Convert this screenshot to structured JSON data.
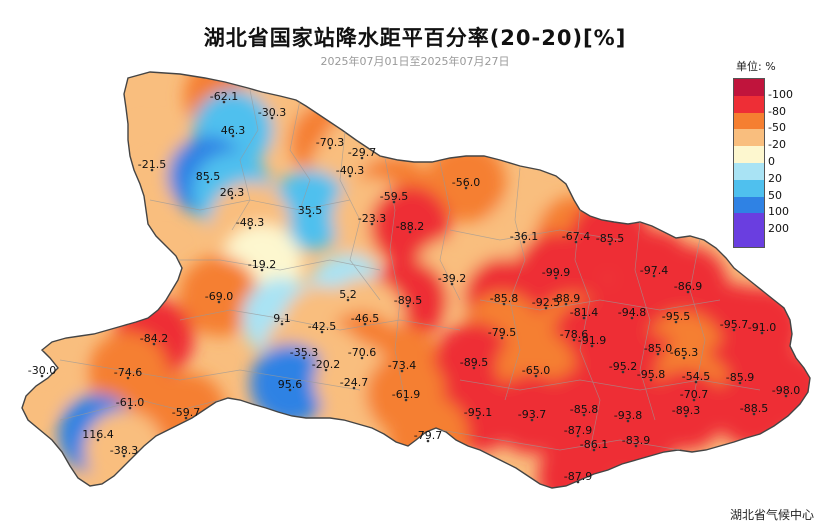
{
  "header": {
    "title": "湖北省国家站降水距平百分率(20-20)[%]",
    "subtitle": "2025年07月01日至2025年07月27日"
  },
  "legend": {
    "unit_label": "单位: %",
    "items": [
      {
        "label": "-100",
        "color": "#c0143c"
      },
      {
        "label": "-80",
        "color": "#ee2e36"
      },
      {
        "label": "-50",
        "color": "#f57f31"
      },
      {
        "label": "-20",
        "color": "#f9be7e"
      },
      {
        "label": "0",
        "color": "#fdf7cf"
      },
      {
        "label": "20",
        "color": "#a9e3f4"
      },
      {
        "label": "50",
        "color": "#4fc0ee"
      },
      {
        "label": "100",
        "color": "#2f82e4"
      },
      {
        "label": "200",
        "color": "#6a3ee0"
      },
      {
        "label": "",
        "color": "#6a3ee0"
      }
    ]
  },
  "footer": "湖北省气候中心",
  "stations": [
    {
      "v": "-62.1"
    },
    {
      "v": "-30.3"
    },
    {
      "v": "46.3"
    },
    {
      "v": "-70.3"
    },
    {
      "v": "-29.7"
    },
    {
      "v": "-21.5"
    },
    {
      "v": "85.5"
    },
    {
      "v": "-40.3"
    },
    {
      "v": "-56.0"
    },
    {
      "v": "26.3"
    },
    {
      "v": "-59.5"
    },
    {
      "v": "35.5"
    },
    {
      "v": "-23.3"
    },
    {
      "v": "-48.3"
    },
    {
      "v": "-88.2"
    },
    {
      "v": "-36.1"
    },
    {
      "v": "-67.4"
    },
    {
      "v": "-85.5"
    },
    {
      "v": "-19.2"
    },
    {
      "v": "-39.2"
    },
    {
      "v": "-99.9"
    },
    {
      "v": "-97.4"
    },
    {
      "v": "-69.0"
    },
    {
      "v": "5.2"
    },
    {
      "v": "-85.8"
    },
    {
      "v": "-92.5"
    },
    {
      "v": "-88.9"
    },
    {
      "v": "-86.9"
    },
    {
      "v": "-89.5"
    },
    {
      "v": "-81.4"
    },
    {
      "v": "9.1"
    },
    {
      "v": "-46.5"
    },
    {
      "v": "-94.8"
    },
    {
      "v": "-95.5"
    },
    {
      "v": "-42.5"
    },
    {
      "v": "-84.2"
    },
    {
      "v": "-79.5"
    },
    {
      "v": "-78.6"
    },
    {
      "v": "-91.9"
    },
    {
      "v": "-95.7"
    },
    {
      "v": "-91.0"
    },
    {
      "v": "-35.3"
    },
    {
      "v": "-70.6"
    },
    {
      "v": "-85.0"
    },
    {
      "v": "-65.3"
    },
    {
      "v": "-30.0"
    },
    {
      "v": "-74.6"
    },
    {
      "v": "-20.2"
    },
    {
      "v": "-73.4"
    },
    {
      "v": "-89.5"
    },
    {
      "v": "-65.0"
    },
    {
      "v": "-95.2"
    },
    {
      "v": "-95.8"
    },
    {
      "v": "-54.5"
    },
    {
      "v": "-85.9"
    },
    {
      "v": "95.6"
    },
    {
      "v": "-24.7"
    },
    {
      "v": "-70.7"
    },
    {
      "v": "-98.0"
    },
    {
      "v": "-61.0"
    },
    {
      "v": "-61.9"
    },
    {
      "v": "-89.3"
    },
    {
      "v": "-88.5"
    },
    {
      "v": "-59.7"
    },
    {
      "v": "-95.1"
    },
    {
      "v": "-93.7"
    },
    {
      "v": "-85.8"
    },
    {
      "v": "-93.8"
    },
    {
      "v": "116.4"
    },
    {
      "v": "-87.9"
    },
    {
      "v": "-79.7"
    },
    {
      "v": "-83.9"
    },
    {
      "v": "-38.3"
    },
    {
      "v": "-86.1"
    },
    {
      "v": "-87.9"
    }
  ]
}
